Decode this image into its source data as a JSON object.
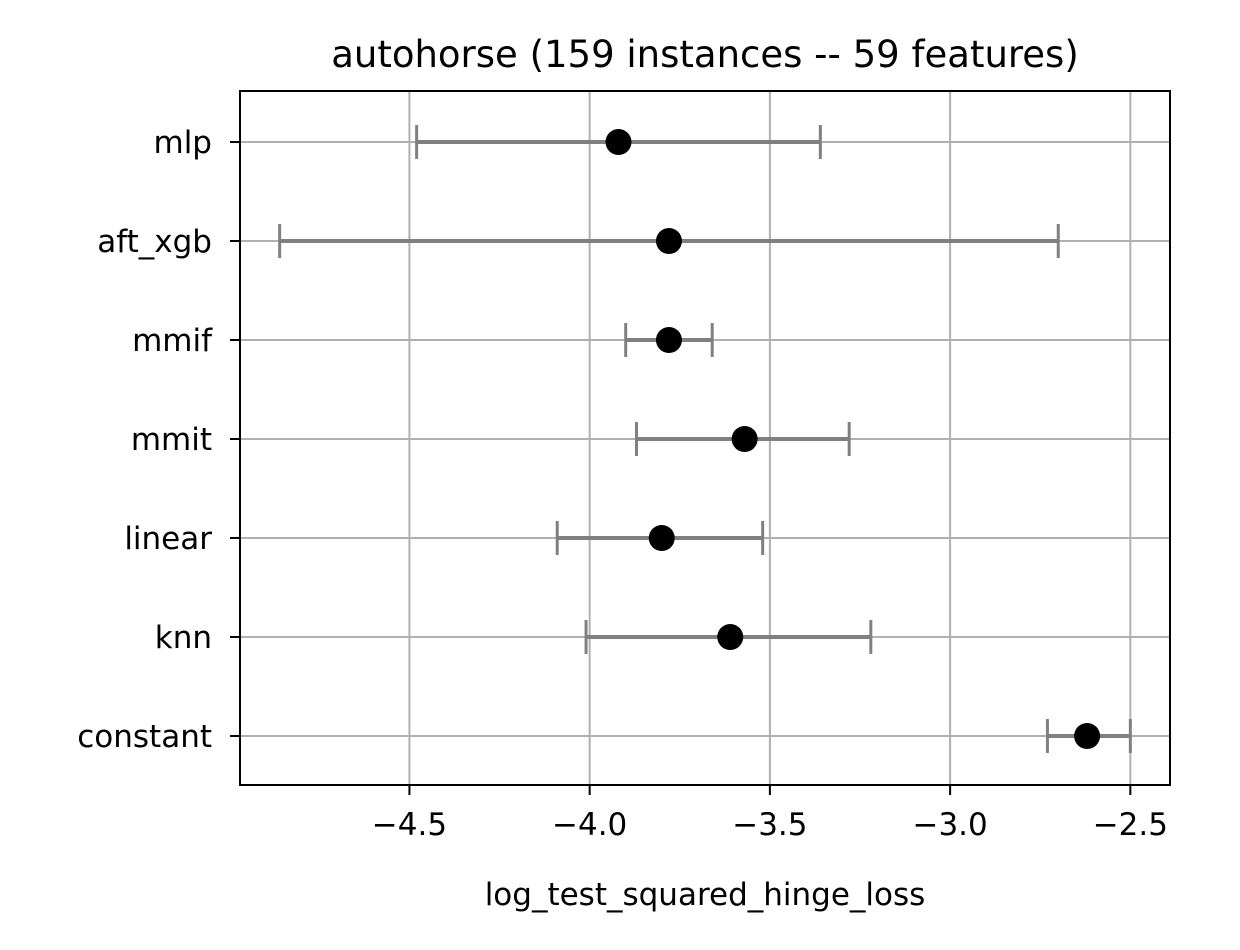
{
  "chart_data": {
    "type": "scatter",
    "subtype": "errorbar",
    "title": "autohorse (159 instances -- 59 features)",
    "xlabel": "log_test_squared_hinge_loss",
    "ylabel": "",
    "xlim": [
      -4.97,
      -2.39
    ],
    "x_ticks": [
      -4.5,
      -4.0,
      -3.5,
      -3.0,
      -2.5
    ],
    "x_tick_labels": [
      "−4.5",
      "−4.0",
      "−3.5",
      "−3.0",
      "−2.5"
    ],
    "categories": [
      "mlp",
      "aft_xgb",
      "mmif",
      "mmit",
      "linear",
      "knn",
      "constant"
    ],
    "mean": [
      -3.92,
      -3.78,
      -3.78,
      -3.57,
      -3.8,
      -3.61,
      -2.62
    ],
    "lower": [
      -4.48,
      -4.86,
      -3.9,
      -3.87,
      -4.09,
      -4.01,
      -2.73
    ],
    "upper": [
      -3.36,
      -2.7,
      -3.66,
      -3.28,
      -3.52,
      -3.22,
      -2.5
    ],
    "grid": true,
    "colors": {
      "marker": "#000000",
      "errorbar": "#808080",
      "grid": "#b0b0b0",
      "frame": "#000000"
    }
  }
}
